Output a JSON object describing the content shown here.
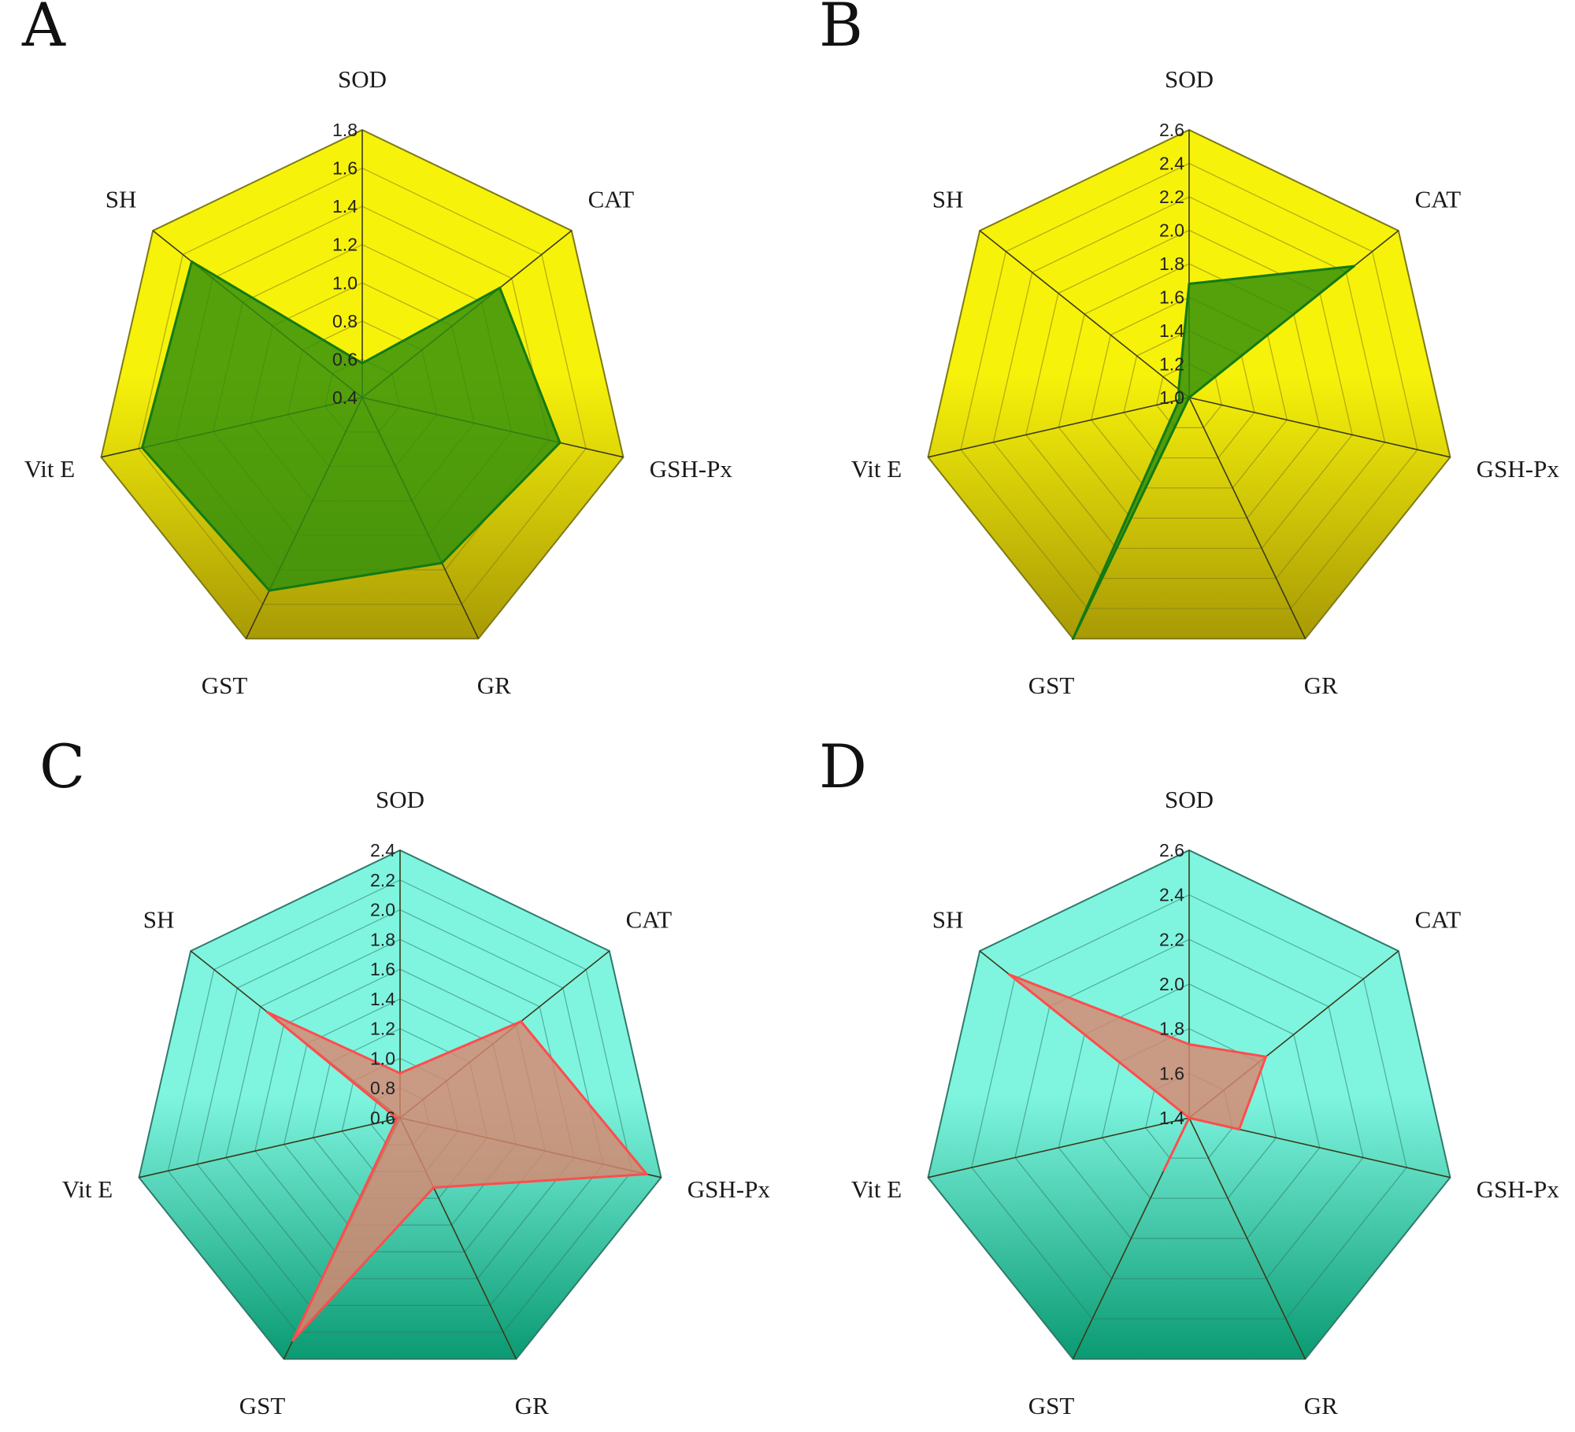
{
  "chart_data": [
    {
      "type": "radar",
      "panel": "A",
      "categories": [
        "SOD",
        "CAT",
        "GSH-Px",
        "GR",
        "GST",
        "Vit E",
        "SH"
      ],
      "ticks": [
        "0.4",
        "0.6",
        "0.8",
        "1.0",
        "1.2",
        "1.4",
        "1.6",
        "1.8"
      ],
      "rlim": [
        0.4,
        1.8
      ],
      "series": [
        {
          "values": [
            0.58,
            1.32,
            1.46,
            1.36,
            1.52,
            1.58,
            1.54
          ]
        }
      ],
      "colors": {
        "fill_top": "#f7f20a",
        "fill_bottom": "#a89a05",
        "grid": "#7d7a16",
        "series_fill": "#2f8f0c",
        "series_line": "#137a13"
      }
    },
    {
      "type": "radar",
      "panel": "B",
      "categories": [
        "SOD",
        "CAT",
        "GSH-Px",
        "GR",
        "GST",
        "Vit E",
        "SH"
      ],
      "ticks": [
        "1.0",
        "1.2",
        "1.4",
        "1.6",
        "1.8",
        "2.0",
        "2.2",
        "2.4",
        "2.6"
      ],
      "rlim": [
        1.0,
        2.6
      ],
      "series": [
        {
          "values": [
            1.68,
            2.26,
            1.0,
            1.0,
            2.6,
            1.06,
            1.08
          ]
        }
      ],
      "colors": {
        "fill_top": "#f7f20a",
        "fill_bottom": "#a89a05",
        "grid": "#7d7a16",
        "series_fill": "#2f8f0c",
        "series_line": "#137a13"
      }
    },
    {
      "type": "radar",
      "panel": "C",
      "categories": [
        "SOD",
        "CAT",
        "GSH-Px",
        "GR",
        "GST",
        "Vit E",
        "SH"
      ],
      "ticks": [
        "0.6",
        "0.8",
        "1.0",
        "1.2",
        "1.4",
        "1.6",
        "1.8",
        "2.0",
        "2.2",
        "2.4"
      ],
      "rlim": [
        0.6,
        2.4
      ],
      "series": [
        {
          "values": [
            0.9,
            1.64,
            2.3,
            1.12,
            2.26,
            0.62,
            1.74
          ]
        }
      ],
      "colors": {
        "fill_top": "#7ff5e0",
        "fill_bottom": "#0a9a72",
        "grid": "#2f7a6a",
        "series_fill": "#d9866f",
        "series_line": "#ff4d4d"
      }
    },
    {
      "type": "radar",
      "panel": "D",
      "categories": [
        "SOD",
        "CAT",
        "GSH-Px",
        "GR",
        "GST",
        "Vit E",
        "SH"
      ],
      "ticks": [
        "1.4",
        "1.6",
        "1.8",
        "2.0",
        "2.2",
        "2.4",
        "2.6"
      ],
      "rlim": [
        1.4,
        2.6
      ],
      "series": [
        {
          "values": [
            1.73,
            1.84,
            1.63,
            1.4,
            1.66,
            1.4,
            2.43
          ]
        }
      ],
      "colors": {
        "fill_top": "#7ff5e0",
        "fill_bottom": "#0a9a72",
        "grid": "#2f7a6a",
        "series_fill": "#d9866f",
        "series_line": "#ff4d4d"
      }
    }
  ]
}
